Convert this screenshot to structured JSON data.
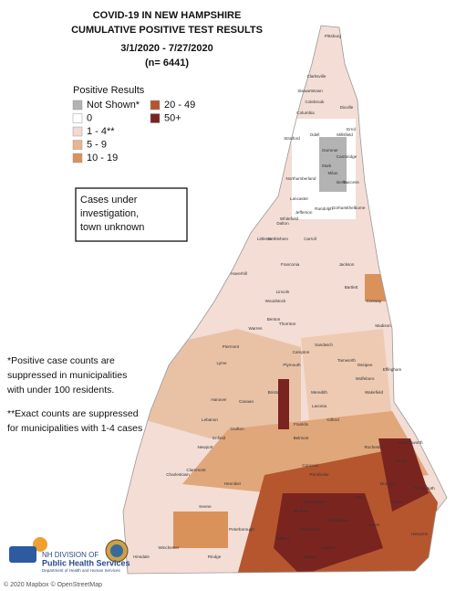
{
  "title": [
    "COVID-19 IN NEW HAMPSHIRE",
    "CUMULATIVE POSITIVE TEST RESULTS",
    "3/1/2020 - 7/27/2020",
    "(n= 6441)"
  ],
  "legend": {
    "title": "Positive Results",
    "items": [
      {
        "label": "Not Shown*",
        "color": "#b3b3b3"
      },
      {
        "label": "0",
        "color": "#ffffff"
      },
      {
        "label": "1 - 4**",
        "color": "#f3d9d0"
      },
      {
        "label": "5 - 9",
        "color": "#e9b48f"
      },
      {
        "label": "10 - 19",
        "color": "#d9925a"
      },
      {
        "label": "20 - 49",
        "color": "#b5562e"
      },
      {
        "label": "50+",
        "color": "#7a2420"
      }
    ]
  },
  "box": [
    "Cases under",
    "investigation,",
    "town unknown"
  ],
  "notes": [
    "*Positive case counts are",
    "suppressed in municipalities",
    "with under 100 residents.",
    "**Exact counts are suppressed",
    "for municipalities with 1-4 cases"
  ],
  "logo": [
    "NH DIVISION OF",
    "Public Health Services",
    "Department of Health and Human Services"
  ],
  "attribution": "© 2020 Mapbox © OpenStreetMap",
  "towns": [
    "Pittsburg",
    "Clarksville",
    "Stewartstown",
    "Colebrook",
    "Columbia",
    "Dixville",
    "Errol",
    "Stratford",
    "Odell",
    "Millsfield",
    "Dummer",
    "Cambridge",
    "Stark",
    "Milan",
    "Berlin",
    "Success",
    "Northumberland",
    "Lancaster",
    "Jefferson",
    "Randolph",
    "Gorham",
    "Shelburne",
    "Whitefield",
    "Dalton",
    "Littleton",
    "Bethlehem",
    "Carroll",
    "Franconia",
    "Lincoln",
    "Bartlett",
    "Jackson",
    "Conway",
    "Haverhill",
    "Benton",
    "Woodstock",
    "Warren",
    "Thornton",
    "Piermont",
    "Lyme",
    "Campton",
    "Sandwich",
    "Tamworth",
    "Madison",
    "Effingham",
    "Hanover",
    "Lebanon",
    "Canaan",
    "Plymouth",
    "Meredith",
    "Ossipee",
    "Wakefield",
    "Enfield",
    "Grafton",
    "Bristol",
    "Laconia",
    "Gilford",
    "Wolfeboro",
    "Claremont",
    "Newport",
    "Franklin",
    "Belmont",
    "Rochester",
    "Dover",
    "Somersworth",
    "Charlestown",
    "Henniker",
    "Concord",
    "Pembroke",
    "Durham",
    "Portsmouth",
    "Keene",
    "Peterborough",
    "Milford",
    "Merrimack",
    "Derry",
    "Salem",
    "Exeter",
    "Hampton",
    "Hinsdale",
    "Winchester",
    "Rindge",
    "Hudson",
    "Nashua",
    "Manchester",
    "Bedford",
    "Londonderry"
  ]
}
